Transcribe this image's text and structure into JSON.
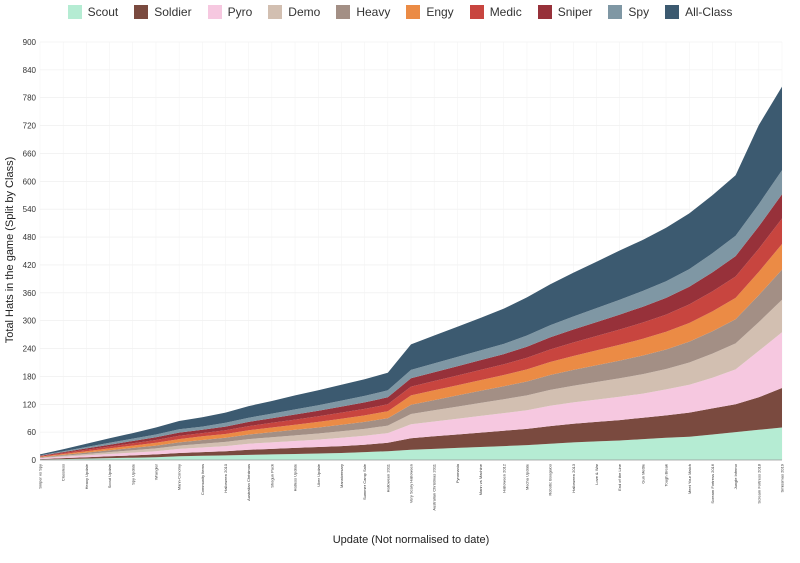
{
  "chart_data": {
    "type": "area",
    "stacked": true,
    "xlabel": "Update (Not normalised to date)",
    "ylabel": "Total Hats in the game (Split by Class)",
    "ylim": [
      0,
      900
    ],
    "yticks": [
      0,
      60,
      120,
      180,
      240,
      300,
      360,
      420,
      480,
      540,
      600,
      660,
      720,
      780,
      840,
      900
    ],
    "grid": true,
    "legend_position": "top",
    "categories": [
      "Sniper vs Spy",
      "Classless",
      "Heavy Update",
      "Scout Update",
      "Spy Update",
      "Wrangler",
      "Mann-Conomy",
      "Community Items",
      "Halloween 2010",
      "Australian Christmas",
      "Shogun Pack",
      "Hatless Update",
      "Uber Update",
      "Manniversary",
      "Summer Camp Sale",
      "Halloween 2011",
      "Very Scary Halloween",
      "Australian Christmas 2011",
      "Pyromania",
      "Mann vs Machine",
      "Halloween 2012",
      "Mecha Update",
      "Robotic Boogaloo",
      "Halloween 2013",
      "Love & War",
      "End of the Line",
      "Gun Mettle",
      "Tough Break",
      "Meet Your Match",
      "Scream Fortress 2016",
      "Jungle Inferno",
      "Scream Fortress 2018",
      "Smissmas 2019"
    ],
    "series": [
      {
        "name": "Scout",
        "color": "#b5ecd3",
        "values": [
          1,
          2,
          3,
          4,
          5,
          6,
          8,
          9,
          10,
          11,
          12,
          13,
          14,
          15,
          17,
          19,
          22,
          24,
          26,
          28,
          30,
          32,
          35,
          38,
          40,
          42,
          45,
          48,
          50,
          55,
          60,
          65,
          70
        ]
      },
      {
        "name": "Soldier",
        "color": "#7a4a3f",
        "values": [
          1,
          2,
          3,
          4,
          5,
          6,
          7,
          8,
          9,
          11,
          12,
          13,
          14,
          15,
          16,
          18,
          25,
          27,
          29,
          31,
          33,
          35,
          38,
          40,
          42,
          44,
          46,
          48,
          52,
          56,
          60,
          70,
          85
        ]
      },
      {
        "name": "Pyro",
        "color": "#f6c8e0",
        "values": [
          2,
          3,
          4,
          5,
          6,
          7,
          9,
          10,
          11,
          13,
          14,
          15,
          16,
          18,
          19,
          21,
          30,
          32,
          34,
          36,
          38,
          40,
          44,
          46,
          48,
          50,
          52,
          56,
          60,
          66,
          75,
          100,
          120
        ]
      },
      {
        "name": "Demo",
        "color": "#d2bfb1",
        "values": [
          1,
          2,
          3,
          4,
          5,
          6,
          7,
          8,
          9,
          10,
          11,
          12,
          13,
          14,
          15,
          16,
          22,
          24,
          26,
          28,
          30,
          32,
          34,
          36,
          38,
          40,
          42,
          44,
          48,
          52,
          56,
          62,
          70
        ]
      },
      {
        "name": "Heavy",
        "color": "#a38f85",
        "values": [
          1,
          2,
          3,
          4,
          5,
          6,
          7,
          8,
          9,
          10,
          11,
          12,
          13,
          14,
          15,
          16,
          20,
          22,
          24,
          26,
          28,
          30,
          32,
          34,
          36,
          38,
          40,
          42,
          45,
          48,
          52,
          58,
          65
        ]
      },
      {
        "name": "Engy",
        "color": "#eb8b45",
        "values": [
          1,
          2,
          3,
          4,
          5,
          6,
          7,
          8,
          8,
          9,
          10,
          11,
          12,
          13,
          14,
          15,
          20,
          21,
          22,
          23,
          24,
          26,
          28,
          30,
          32,
          34,
          36,
          38,
          40,
          43,
          46,
          50,
          55
        ]
      },
      {
        "name": "Medic",
        "color": "#c8453f",
        "values": [
          1,
          2,
          3,
          4,
          5,
          6,
          7,
          7,
          8,
          9,
          10,
          11,
          12,
          13,
          14,
          15,
          19,
          20,
          21,
          22,
          23,
          25,
          27,
          29,
          31,
          33,
          35,
          37,
          40,
          43,
          46,
          50,
          55
        ]
      },
      {
        "name": "Sniper",
        "color": "#97313a",
        "values": [
          1,
          2,
          3,
          4,
          5,
          6,
          7,
          7,
          8,
          9,
          10,
          11,
          12,
          13,
          14,
          15,
          18,
          19,
          20,
          21,
          22,
          24,
          26,
          28,
          30,
          32,
          34,
          36,
          38,
          41,
          44,
          48,
          52
        ]
      },
      {
        "name": "Spy",
        "color": "#7f97a4",
        "values": [
          1,
          2,
          3,
          4,
          5,
          6,
          7,
          7,
          8,
          9,
          10,
          11,
          12,
          13,
          14,
          15,
          18,
          19,
          20,
          21,
          22,
          24,
          26,
          28,
          30,
          32,
          34,
          36,
          38,
          41,
          44,
          48,
          52
        ]
      },
      {
        "name": "All-Class",
        "color": "#3c5a70",
        "values": [
          2,
          4,
          7,
          10,
          12,
          15,
          18,
          20,
          22,
          25,
          27,
          30,
          32,
          34,
          36,
          38,
          55,
          60,
          65,
          70,
          76,
          82,
          88,
          94,
          100,
          106,
          110,
          115,
          120,
          125,
          130,
          170,
          180
        ]
      }
    ]
  }
}
